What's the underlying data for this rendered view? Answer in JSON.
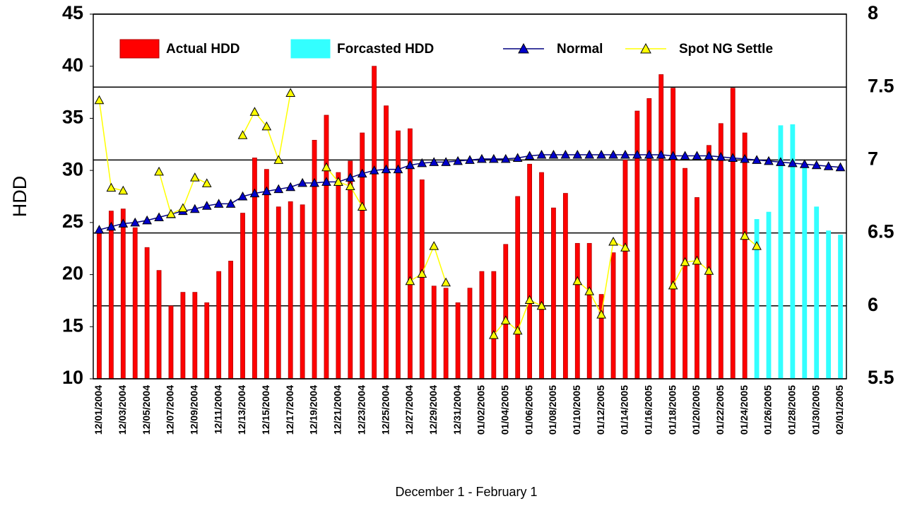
{
  "chart_data": {
    "type": "bar",
    "y_label": "HDD",
    "x_label": "December 1 - February 1",
    "categories": [
      "12/01/2004",
      null,
      "12/03/2004",
      null,
      "12/05/2004",
      null,
      "12/07/2004",
      null,
      "12/09/2004",
      null,
      "12/11/2004",
      null,
      "12/13/2004",
      null,
      "12/15/2004",
      null,
      "12/17/2004",
      null,
      "12/19/2004",
      null,
      "12/21/2004",
      null,
      "12/23/2004",
      null,
      "12/25/2004",
      null,
      "12/27/2004",
      null,
      "12/29/2004",
      null,
      "12/31/2004",
      null,
      "01/02/2005",
      null,
      "01/04/2005",
      null,
      "01/06/2005",
      null,
      "01/08/2005",
      null,
      "01/10/2005",
      null,
      "01/12/2005",
      null,
      "01/14/2005",
      null,
      "01/16/2005",
      null,
      "01/18/2005",
      null,
      "01/20/2005",
      null,
      "01/22/2005",
      null,
      "01/24/2005",
      null,
      "01/26/2005",
      null,
      "01/28/2005",
      null,
      "01/30/2005",
      null,
      "02/01/2005"
    ],
    "series": [
      {
        "name": "Actual HDD",
        "type": "bar",
        "color": "#ff0000",
        "values": [
          24.2,
          26.1,
          26.3,
          24.5,
          22.6,
          20.4,
          17.0,
          18.3,
          18.3,
          17.3,
          20.3,
          21.3,
          25.9,
          31.2,
          30.1,
          26.5,
          27.0,
          26.7,
          32.9,
          35.3,
          29.8,
          30.9,
          33.6,
          40.0,
          36.2,
          33.8,
          34.0,
          29.1,
          18.9,
          18.7,
          17.3,
          18.7,
          20.3,
          20.3,
          22.9,
          27.5,
          30.6,
          29.8,
          26.4,
          27.8,
          23.0,
          23.0,
          18.1,
          22.1,
          31.0,
          35.7,
          36.9,
          39.2,
          37.9,
          30.2,
          27.4,
          32.4,
          34.5,
          37.9,
          33.6,
          null,
          null,
          null,
          null,
          null,
          null,
          null,
          null
        ]
      },
      {
        "name": "Forcasted HDD",
        "type": "bar",
        "color": "#33ffff",
        "values": [
          null,
          null,
          null,
          null,
          null,
          null,
          null,
          null,
          null,
          null,
          null,
          null,
          null,
          null,
          null,
          null,
          null,
          null,
          null,
          null,
          null,
          null,
          null,
          null,
          null,
          null,
          null,
          null,
          null,
          null,
          null,
          null,
          null,
          null,
          null,
          null,
          null,
          null,
          null,
          null,
          null,
          null,
          null,
          null,
          null,
          null,
          null,
          null,
          null,
          null,
          null,
          null,
          null,
          null,
          null,
          25.3,
          26.0,
          34.3,
          34.4,
          30.3,
          26.5,
          24.2,
          23.8
        ]
      },
      {
        "name": "Normal",
        "type": "line",
        "color": "#000080",
        "marker_color": "#0000cc",
        "values": [
          24.3,
          24.6,
          24.9,
          25.0,
          25.2,
          25.5,
          25.8,
          26.1,
          26.3,
          26.6,
          26.8,
          26.8,
          27.5,
          27.8,
          28.0,
          28.2,
          28.4,
          28.8,
          28.8,
          28.9,
          28.9,
          29.3,
          29.7,
          30.0,
          30.1,
          30.1,
          30.5,
          30.7,
          30.8,
          30.8,
          30.9,
          31.0,
          31.1,
          31.1,
          31.1,
          31.2,
          31.4,
          31.5,
          31.5,
          31.5,
          31.5,
          31.5,
          31.5,
          31.5,
          31.5,
          31.5,
          31.5,
          31.5,
          31.4,
          31.4,
          31.4,
          31.4,
          31.3,
          31.2,
          31.1,
          31.0,
          30.9,
          30.8,
          30.7,
          30.6,
          30.5,
          30.4,
          30.3
        ]
      },
      {
        "name": "Spot NG Settle",
        "type": "line",
        "axis": "y2",
        "color": "#ffff00",
        "marker_color": "#ffff00",
        "values": [
          7.41,
          6.81,
          6.79,
          null,
          null,
          6.92,
          6.63,
          6.67,
          6.88,
          6.84,
          null,
          null,
          7.17,
          7.33,
          7.23,
          7.0,
          7.46,
          null,
          null,
          6.95,
          6.85,
          6.82,
          6.68,
          null,
          null,
          null,
          6.17,
          6.22,
          6.41,
          6.16,
          null,
          null,
          null,
          5.8,
          5.9,
          5.83,
          6.04,
          6.0,
          null,
          null,
          6.17,
          6.1,
          5.94,
          6.44,
          6.4,
          null,
          null,
          null,
          6.14,
          6.3,
          6.31,
          6.24,
          null,
          null,
          6.48,
          6.41,
          null,
          null,
          null,
          null,
          null,
          null,
          null
        ]
      }
    ],
    "ylim": [
      10,
      45
    ],
    "yticks": [
      10,
      15,
      20,
      25,
      30,
      35,
      40,
      45
    ],
    "y2lim": [
      5.5,
      8
    ],
    "y2ticks": [
      5.5,
      6,
      6.5,
      7,
      7.5,
      8
    ],
    "grid": true,
    "legend": "top"
  }
}
